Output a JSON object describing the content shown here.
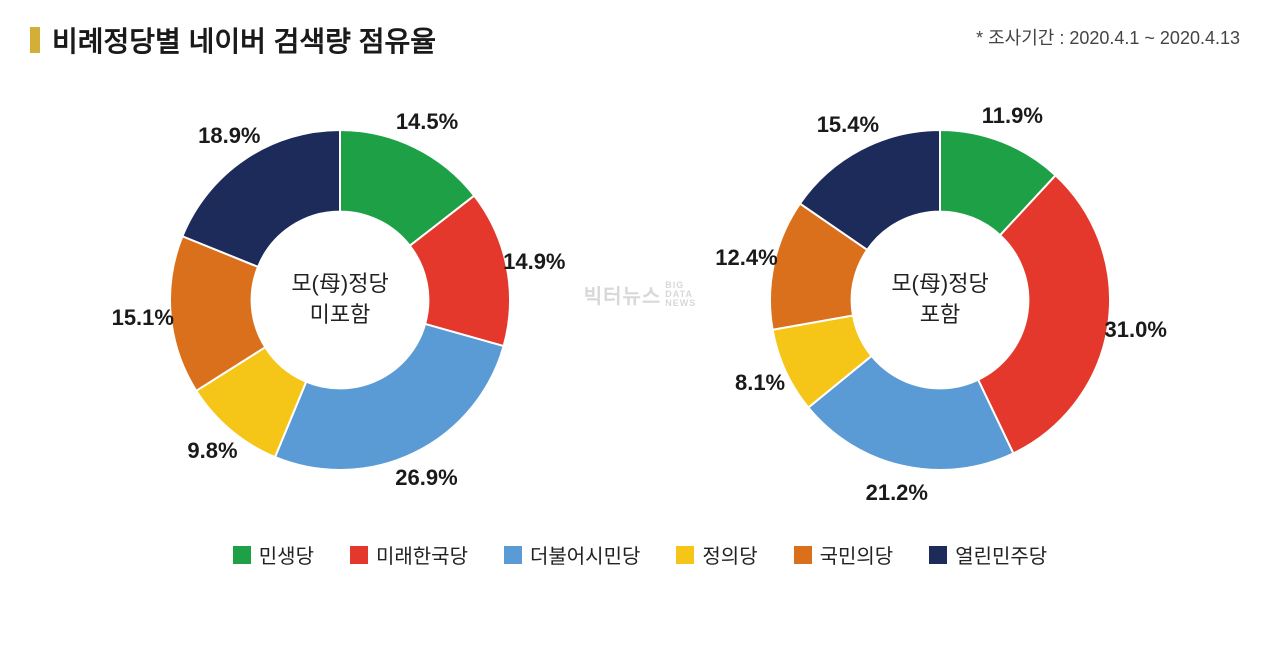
{
  "header": {
    "title": "비례정당별 네이버 검색량 점유율",
    "accent_bar_color": "#d4af37",
    "research_period": "* 조사기간 : 2020.4.1 ~ 2020.4.13"
  },
  "watermark": {
    "main": "빅터뉴스",
    "sub1": "BIG",
    "sub2": "DATA",
    "sub3": "NEWS",
    "color": "#d8d8d8"
  },
  "charts": {
    "type": "donut",
    "inner_radius_ratio": 0.52,
    "start_angle_deg": -90,
    "background_color": "#ffffff",
    "label_fontsize": 22,
    "center_fontsize": 22,
    "left": {
      "center_line1": "모(母)정당",
      "center_line2": "미포함",
      "slices": [
        {
          "label": "14.5%",
          "value": 14.5,
          "color": "#1ea047"
        },
        {
          "label": "14.9%",
          "value": 14.9,
          "color": "#e3382b"
        },
        {
          "label": "26.9%",
          "value": 26.9,
          "color": "#5b9bd5"
        },
        {
          "label": "9.8%",
          "value": 9.8,
          "color": "#f5c518"
        },
        {
          "label": "15.1%",
          "value": 15.1,
          "color": "#da6f1c"
        },
        {
          "label": "18.9%",
          "value": 18.9,
          "color": "#1c2b5a"
        }
      ]
    },
    "right": {
      "center_line1": "모(母)정당",
      "center_line2": "포함",
      "slices": [
        {
          "label": "11.9%",
          "value": 11.9,
          "color": "#1ea047"
        },
        {
          "label": "31.0%",
          "value": 31.0,
          "color": "#e3382b"
        },
        {
          "label": "21.2%",
          "value": 21.2,
          "color": "#5b9bd5"
        },
        {
          "label": "8.1%",
          "value": 8.1,
          "color": "#f5c518"
        },
        {
          "label": "12.4%",
          "value": 12.4,
          "color": "#da6f1c"
        },
        {
          "label": "15.4%",
          "value": 15.4,
          "color": "#1c2b5a"
        }
      ]
    }
  },
  "legend": {
    "items": [
      {
        "label": "민생당",
        "color": "#1ea047"
      },
      {
        "label": "미래한국당",
        "color": "#e3382b"
      },
      {
        "label": "더불어시민당",
        "color": "#5b9bd5"
      },
      {
        "label": "정의당",
        "color": "#f5c518"
      },
      {
        "label": "국민의당",
        "color": "#da6f1c"
      },
      {
        "label": "열린민주당",
        "color": "#1c2b5a"
      }
    ]
  }
}
